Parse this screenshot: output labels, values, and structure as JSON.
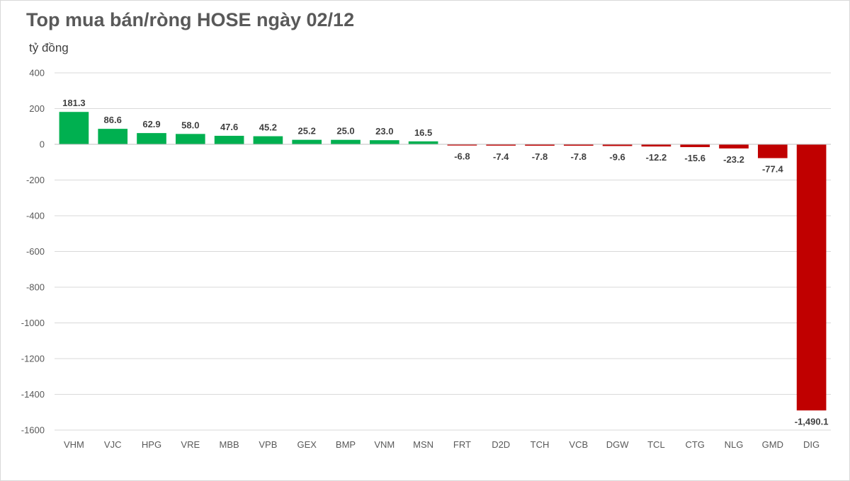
{
  "chart_data": {
    "type": "bar",
    "title": "Top mua bán/ròng HOSE ngày 02/12",
    "ylabel": "tỷ đồng",
    "xlabel": "",
    "ylim": [
      -1600,
      400
    ],
    "yticks": [
      400,
      200,
      0,
      -200,
      -400,
      -600,
      -800,
      -1000,
      -1200,
      -1400,
      -1600
    ],
    "grid": true,
    "legend": "none",
    "categories": [
      "VHM",
      "VJC",
      "HPG",
      "VRE",
      "MBB",
      "VPB",
      "GEX",
      "BMP",
      "VNM",
      "MSN",
      "FRT",
      "D2D",
      "TCH",
      "VCB",
      "DGW",
      "TCL",
      "CTG",
      "NLG",
      "GMD",
      "DIG"
    ],
    "values": [
      181.3,
      86.6,
      62.9,
      58.0,
      47.6,
      45.2,
      25.2,
      25.0,
      23.0,
      16.5,
      -6.8,
      -7.4,
      -7.8,
      -7.8,
      -9.6,
      -12.2,
      -15.6,
      -23.2,
      -77.4,
      -1490.1
    ],
    "data_labels": [
      "181.3",
      "86.6",
      "62.9",
      "58.0",
      "47.6",
      "45.2",
      "25.2",
      "25.0",
      "23.0",
      "16.5",
      "-6.8",
      "-7.4",
      "-7.8",
      "-7.8",
      "-9.6",
      "-12.2",
      "-15.6",
      "-23.2",
      "-77.4",
      "-1,490.1"
    ],
    "colors": {
      "positive": "#00b050",
      "negative": "#c00000",
      "grid": "#d9d9d9",
      "axis": "#bfbfbf"
    }
  }
}
